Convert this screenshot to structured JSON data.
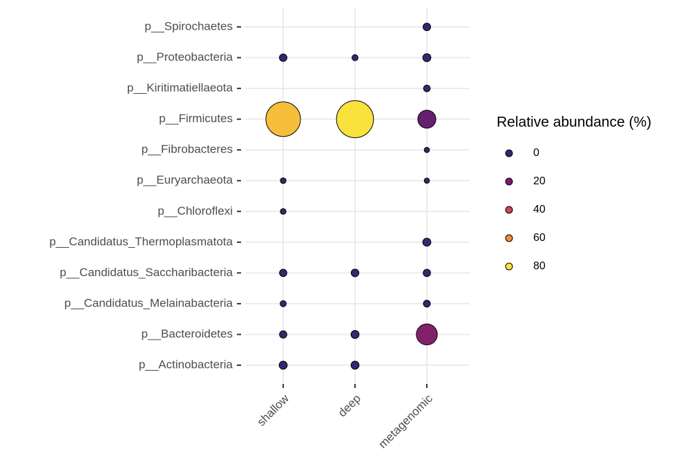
{
  "chart_data": {
    "type": "bubble",
    "x": [
      "shallow",
      "deep",
      "metagenomic"
    ],
    "series": [
      {
        "name": "p__Actinobacteria",
        "values": [
          1.2,
          1.2,
          null
        ]
      },
      {
        "name": "p__Bacteroidetes",
        "values": [
          0.8,
          1.2,
          22
        ]
      },
      {
        "name": "p__Candidatus_Melainabacteria",
        "values": [
          0.3,
          null,
          0.6
        ]
      },
      {
        "name": "p__Candidatus_Saccharibacteria",
        "values": [
          0.8,
          1.0,
          0.8
        ]
      },
      {
        "name": "p__Candidatus_Thermoplasmatota",
        "values": [
          null,
          null,
          1.2
        ]
      },
      {
        "name": "p__Chloroflexi",
        "values": [
          0.2,
          null,
          null
        ]
      },
      {
        "name": "p__Euryarchaeota",
        "values": [
          0.2,
          null,
          0.1
        ]
      },
      {
        "name": "p__Fibrobacteres",
        "values": [
          null,
          null,
          0.1
        ]
      },
      {
        "name": "p__Firmicutes",
        "values": [
          72,
          84,
          15
        ]
      },
      {
        "name": "p__Kiritimatiellaeota",
        "values": [
          null,
          null,
          0.5
        ]
      },
      {
        "name": "p__Proteobacteria",
        "values": [
          0.9,
          0.3,
          1.2
        ]
      },
      {
        "name": "p__Spirochaetes",
        "values": [
          null,
          null,
          0.9
        ]
      }
    ],
    "legend": {
      "title": "Relative abundance (%)",
      "values": [
        0,
        20,
        40,
        60,
        80
      ],
      "colors": [
        "#2b2c6e",
        "#7b1c6e",
        "#c7475a",
        "#f08a3b",
        "#f9e23b"
      ]
    },
    "grid": true
  }
}
